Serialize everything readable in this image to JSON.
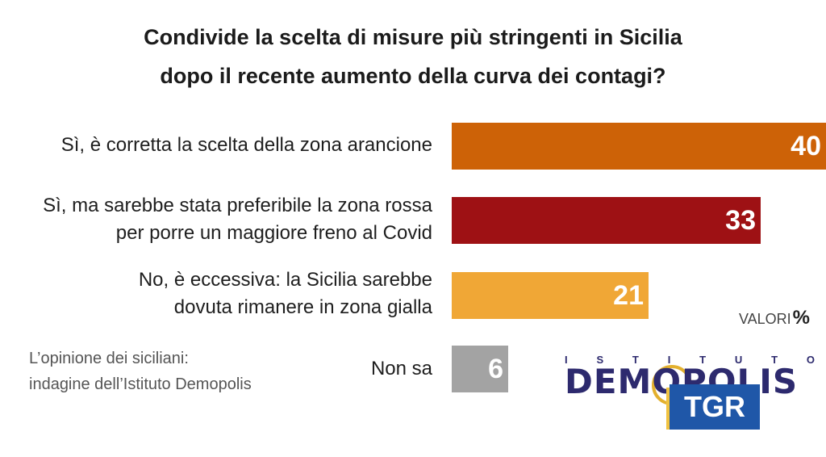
{
  "title": {
    "line1": "Condivide la scelta di misure più stringenti in Sicilia",
    "line2": "dopo il recente aumento della curva dei contagi?"
  },
  "chart_data": {
    "type": "bar",
    "orientation": "horizontal",
    "title": "Condivide la scelta di misure più stringenti in Sicilia dopo il recente aumento della curva dei contagi?",
    "categories": [
      "Sì, è corretta la scelta della zona arancione",
      "Sì, ma sarebbe stata preferibile la zona rossa per porre un maggiore freno al Covid",
      "No, è eccessiva: la Sicilia sarebbe dovuta rimanere in zona gialla",
      "Non sa"
    ],
    "values": [
      40,
      33,
      21,
      6
    ],
    "xlim": [
      0,
      40
    ],
    "colors": [
      "#cd6207",
      "#9e1114",
      "#f0a736",
      "#a3a3a3"
    ],
    "unit": "VALORI %"
  },
  "rows": [
    {
      "label_lines": [
        "Sì, è corretta la scelta della zona arancione"
      ],
      "value": "40"
    },
    {
      "label_lines": [
        "Sì, ma sarebbe stata preferibile la zona rossa",
        "per porre un maggiore freno al Covid"
      ],
      "value": "33"
    },
    {
      "label_lines": [
        "No, è eccessiva: la Sicilia sarebbe",
        "dovuta rimanere in zona gialla"
      ],
      "value": "21"
    },
    {
      "label_lines": [
        "Non sa"
      ],
      "value": "6"
    }
  ],
  "unit_label": "VALORI",
  "unit_symbol": "%",
  "source": {
    "line1": "L’opinione dei siciliani:",
    "line2": "indagine dell’Istituto Demopolis"
  },
  "logo": {
    "top_letters": [
      "I",
      "S",
      "T",
      "I",
      "T",
      "U",
      "T",
      "O"
    ],
    "name": "DEMOPOLIS"
  },
  "broadcaster": "TGR"
}
